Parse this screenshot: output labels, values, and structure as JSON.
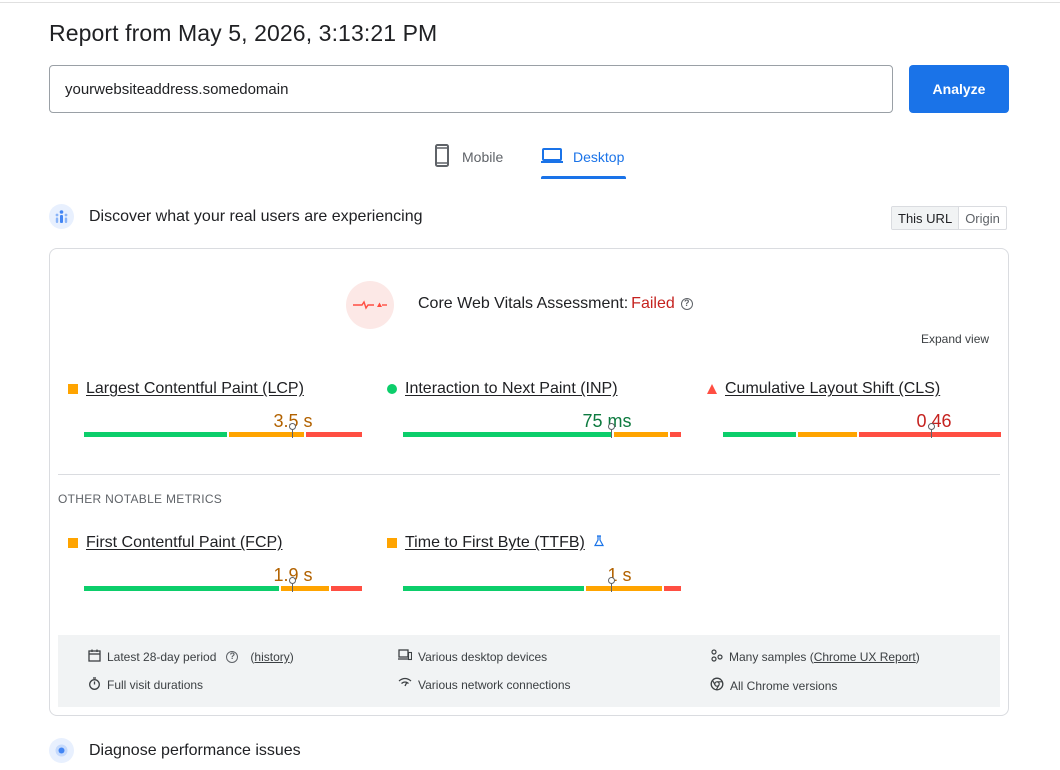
{
  "report": {
    "title": "Report from May 5, 2026, 3:13:21 PM"
  },
  "url_input": {
    "value": "yourwebsiteaddress.somedomain"
  },
  "analyze_button": "Analyze",
  "tabs": {
    "mobile": "Mobile",
    "desktop": "Desktop",
    "active": "desktop"
  },
  "field_data": {
    "title": "Discover what your real users are experiencing",
    "toggle": {
      "this_url": "This URL",
      "origin": "Origin",
      "selected": "this_url"
    },
    "assessment": {
      "label": "Core Web Vitals Assessment:",
      "status": "Failed"
    },
    "expand_view": "Expand view",
    "core_metrics": [
      {
        "name": "Largest Contentful Paint (LCP)",
        "value": "3.5 s",
        "rating": "needs-improvement",
        "value_color": "#b26200",
        "distribution": {
          "good": 0.52,
          "needs_improvement": 0.28,
          "poor": 0.2
        },
        "marker_fraction": 0.75
      },
      {
        "name": "Interaction to Next Paint (INP)",
        "value": "75 ms",
        "rating": "good",
        "value_color": "#0d7a3f",
        "distribution": {
          "good": 0.76,
          "needs_improvement": 0.2,
          "poor": 0.04
        },
        "marker_fraction": 0.75
      },
      {
        "name": "Cumulative Layout Shift (CLS)",
        "value": "0.46",
        "rating": "poor",
        "value_color": "#c5221f",
        "distribution": {
          "good": 0.27,
          "needs_improvement": 0.22,
          "poor": 0.51
        },
        "marker_fraction": 0.75
      }
    ],
    "other_label": "OTHER NOTABLE METRICS",
    "other_metrics": [
      {
        "name": "First Contentful Paint (FCP)",
        "value": "1.9 s",
        "rating": "needs-improvement",
        "value_color": "#b26200",
        "distribution": {
          "good": 0.71,
          "needs_improvement": 0.18,
          "poor": 0.11
        },
        "marker_fraction": 0.75
      },
      {
        "name": "Time to First Byte (TTFB)",
        "value": "1 s",
        "rating": "needs-improvement",
        "value_color": "#b26200",
        "distribution": {
          "good": 0.66,
          "needs_improvement": 0.28,
          "poor": 0.06
        },
        "marker_fraction": 0.75
      }
    ],
    "footer": {
      "period": "Latest 28-day period",
      "history": "history",
      "devices": "Various desktop devices",
      "samples_prefix": "Many samples (",
      "samples_link": "Chrome UX Report",
      "samples_suffix": ")",
      "durations": "Full visit durations",
      "network": "Various network connections",
      "versions": "All Chrome versions"
    }
  },
  "diagnose": {
    "title": "Diagnose performance issues"
  },
  "colors": {
    "good": "#0cce6b",
    "needs_improvement": "#ffa400",
    "poor": "#ff4e42",
    "accent": "#1a73e8"
  }
}
